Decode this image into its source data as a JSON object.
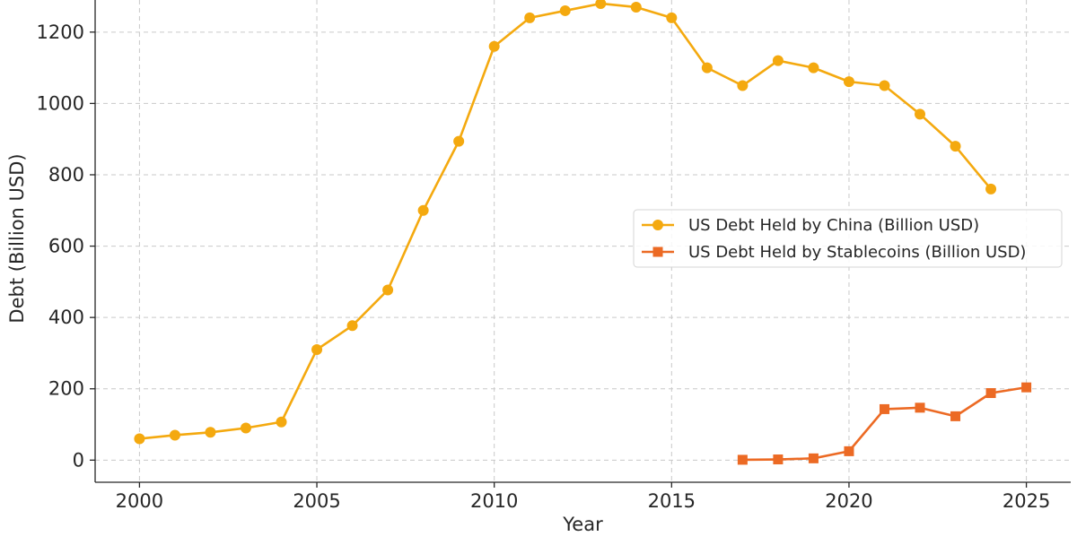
{
  "chart_data": {
    "type": "line",
    "title": "",
    "xlabel": "Year",
    "ylabel": "Debt (Billion USD)",
    "xlim": [
      1998.75,
      2026.25
    ],
    "ylim": [
      -62,
      1290
    ],
    "xticks": [
      2000,
      2005,
      2010,
      2015,
      2020,
      2025
    ],
    "yticks": [
      0,
      200,
      400,
      600,
      800,
      1000,
      1200
    ],
    "grid": true,
    "legend_position": "center-right",
    "series": [
      {
        "name": "US Debt Held by China (Billion USD)",
        "color": "#f4a90f",
        "marker": "circle",
        "x": [
          2000,
          2001,
          2002,
          2003,
          2004,
          2005,
          2006,
          2007,
          2008,
          2009,
          2010,
          2011,
          2012,
          2013,
          2014,
          2015,
          2016,
          2017,
          2018,
          2019,
          2020,
          2021,
          2022,
          2023,
          2024
        ],
        "y": [
          60,
          70,
          78,
          90,
          107,
          310,
          377,
          477,
          700,
          894,
          1160,
          1240,
          1260,
          1280,
          1270,
          1240,
          1100,
          1050,
          1120,
          1100,
          1061,
          1050,
          970,
          880,
          760
        ]
      },
      {
        "name": "US Debt Held by Stablecoins (Billion USD)",
        "color": "#ec6a24",
        "marker": "square",
        "x": [
          2017,
          2018,
          2019,
          2020,
          2021,
          2022,
          2023,
          2024,
          2025
        ],
        "y": [
          1,
          2,
          5,
          25,
          143,
          147,
          123,
          188,
          204
        ]
      }
    ]
  }
}
